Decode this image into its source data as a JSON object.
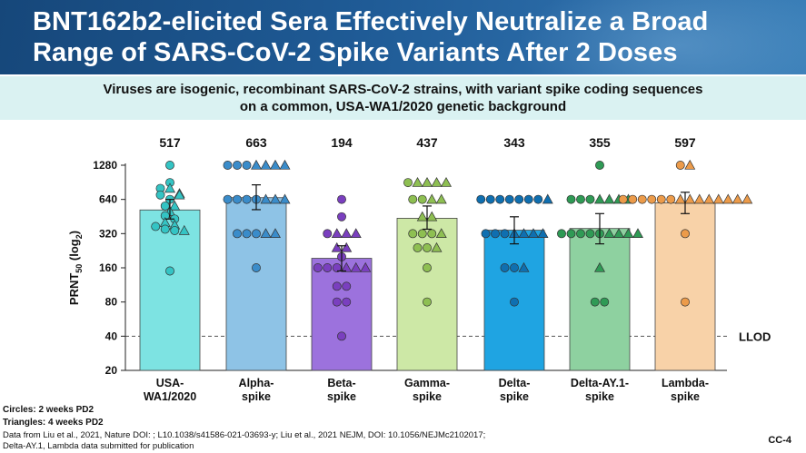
{
  "title_line1": "BNT162b2-elicited Sera Effectively Neutralize a Broad",
  "title_line2": "Range of SARS-CoV-2 Spike Variants After 2 Doses",
  "subtitle_line1": "Viruses are isogenic, recombinant SARS-CoV-2 strains, with variant spike coding sequences",
  "subtitle_line2": "on a common, USA-WA1/2020 genetic background",
  "legend_circles": "Circles: 2 weeks PD2",
  "legend_triangles": "Triangles: 4 weeks PD2",
  "footnote_line1": "Data from Liu et al., 2021, Nature DOI: ; L10.1038/s41586-021-03693-y; Liu et al., 2021 NEJM, DOI: 10.1056/NEJMc2102017;",
  "footnote_line2": "Delta-AY.1, Lambda data submitted for publication",
  "slide_id": "CC-4",
  "chart_data": {
    "type": "bar",
    "yscale": "log2",
    "ylabel_base": "PRNT",
    "ylabel_sub": "50",
    "ylabel_paren_open": " (log",
    "ylabel_paren_sub": "2",
    "ylabel_paren_close": ")",
    "yticks": [
      20,
      40,
      80,
      160,
      320,
      640,
      1280
    ],
    "ylim": [
      20,
      1280
    ],
    "llod": {
      "value": 40,
      "label": "LLOD"
    },
    "categories": [
      {
        "line1": "USA-",
        "line2": "WA1/2020",
        "value": 517,
        "label": "517",
        "ci": [
          430,
          640
        ],
        "fill": "#7de3e2",
        "marker": "#34c4c4",
        "circles": [
          1280,
          900,
          800,
          700,
          640,
          560,
          460,
          430,
          370,
          350,
          340,
          150
        ],
        "triangles": [
          800,
          720,
          700,
          560,
          500,
          400,
          380,
          340
        ]
      },
      {
        "line1": "Alpha-",
        "line2": "spike",
        "value": 663,
        "label": "663",
        "ci": [
          520,
          860
        ],
        "fill": "#8ec3e6",
        "marker": "#3a8cca",
        "circles": [
          1280,
          1280,
          1280,
          640,
          640,
          640,
          640,
          320,
          320,
          320,
          160
        ],
        "triangles": [
          1280,
          1280,
          1280,
          1280,
          640,
          640,
          640,
          320,
          320
        ]
      },
      {
        "line1": "Beta-",
        "line2": "spike",
        "value": 194,
        "label": "194",
        "ci": [
          150,
          250
        ],
        "fill": "#9c72dd",
        "marker": "#7a3fbf",
        "circles": [
          640,
          450,
          320,
          200,
          160,
          160,
          160,
          110,
          110,
          80,
          80,
          40
        ],
        "triangles": [
          320,
          320,
          320,
          240,
          240,
          160,
          160,
          160
        ]
      },
      {
        "line1": "Gamma-",
        "line2": "spike",
        "value": 437,
        "label": "437",
        "ci": [
          350,
          560
        ],
        "fill": "#cde8a6",
        "marker": "#8ebf52",
        "circles": [
          900,
          640,
          640,
          320,
          320,
          320,
          240,
          240,
          160,
          80
        ],
        "triangles": [
          900,
          900,
          900,
          900,
          640,
          640,
          450,
          450,
          320,
          240
        ]
      },
      {
        "line1": "Delta-",
        "line2": "spike",
        "value": 343,
        "label": "343",
        "ci": [
          260,
          450
        ],
        "fill": "#1fa4e2",
        "marker": "#0f6fb0",
        "circles": [
          640,
          640,
          640,
          640,
          640,
          640,
          640,
          320,
          320,
          320,
          160,
          160,
          80
        ],
        "triangles": [
          640,
          320,
          320,
          320,
          320,
          160
        ]
      },
      {
        "line1": "Delta-AY.1-",
        "line2": "spike",
        "value": 355,
        "label": "355",
        "ci": [
          260,
          480
        ],
        "fill": "#8ed1a0",
        "marker": "#2f9a55",
        "circles": [
          1280,
          640,
          640,
          640,
          320,
          320,
          320,
          320,
          320,
          80,
          80
        ],
        "triangles": [
          640,
          640,
          640,
          640,
          320,
          320,
          320,
          320,
          160
        ]
      },
      {
        "line1": "Lambda-",
        "line2": "spike",
        "value": 597,
        "label": "597",
        "ci": [
          480,
          740
        ],
        "fill": "#f8d2a8",
        "marker": "#ec9b4a",
        "circles": [
          1280,
          640,
          640,
          640,
          640,
          640,
          640,
          320,
          80
        ],
        "triangles": [
          1280,
          640,
          640,
          640,
          640,
          640,
          640,
          640,
          640
        ]
      }
    ]
  }
}
